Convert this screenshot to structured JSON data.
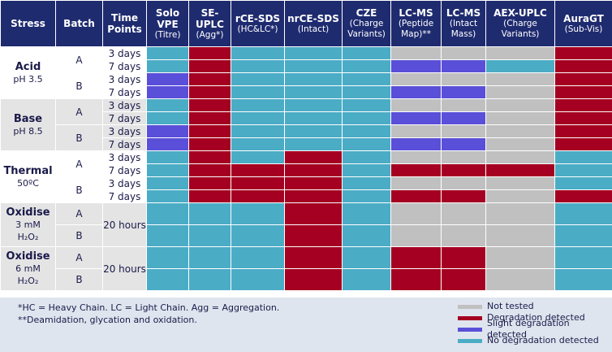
{
  "header": [
    {
      "main": [
        "Stress"
      ],
      "sub": []
    },
    {
      "main": [
        "Batch"
      ],
      "sub": []
    },
    {
      "main": [
        "Time",
        "Points"
      ],
      "sub": []
    },
    {
      "main": [
        "Solo",
        "VPE"
      ],
      "sub": [
        "(Titre)"
      ]
    },
    {
      "main": [
        "SE-",
        "UPLC"
      ],
      "sub": [
        "(Agg*)"
      ]
    },
    {
      "main": [
        "rCE-SDS"
      ],
      "sub": [
        "(HC&LC*)"
      ]
    },
    {
      "main": [
        "nrCE-SDS"
      ],
      "sub": [
        "(Intact)"
      ]
    },
    {
      "main": [
        "CZE"
      ],
      "sub": [
        "(Charge",
        "Variants)"
      ]
    },
    {
      "main": [
        "LC-MS"
      ],
      "sub": [
        "(Peptide",
        "Map)**"
      ]
    },
    {
      "main": [
        "LC-MS"
      ],
      "sub": [
        "(Intact",
        "Mass)"
      ]
    },
    {
      "main": [
        "AEX-UPLC"
      ],
      "sub": [
        "(Charge",
        "Variants)"
      ]
    },
    {
      "main": [
        "AuraGT"
      ],
      "sub": [
        "(Sub-Vis)"
      ]
    }
  ],
  "groups": [
    {
      "stress": "Acid",
      "condition": [
        "pH 3.5"
      ],
      "batches": [
        {
          "batch": "A",
          "rows": [
            {
              "time": "3 days",
              "cells": [
                3,
                1,
                3,
                3,
                3,
                0,
                0,
                0,
                1
              ]
            },
            {
              "time": "7 days",
              "cells": [
                3,
                1,
                3,
                3,
                3,
                2,
                2,
                3,
                1
              ]
            }
          ]
        },
        {
          "batch": "B",
          "rows": [
            {
              "time": "3 days",
              "cells": [
                2,
                1,
                3,
                3,
                3,
                0,
                0,
                0,
                1
              ]
            },
            {
              "time": "7 days",
              "cells": [
                2,
                1,
                3,
                3,
                3,
                2,
                2,
                0,
                1
              ]
            }
          ]
        }
      ]
    },
    {
      "stress": "Base",
      "condition": [
        "pH 8.5"
      ],
      "batches": [
        {
          "batch": "A",
          "rows": [
            {
              "time": "3 days",
              "cells": [
                3,
                1,
                3,
                3,
                3,
                0,
                0,
                0,
                1
              ]
            },
            {
              "time": "7 days",
              "cells": [
                3,
                1,
                3,
                3,
                3,
                2,
                2,
                0,
                1
              ]
            }
          ]
        },
        {
          "batch": "B",
          "rows": [
            {
              "time": "3 days",
              "cells": [
                2,
                1,
                3,
                3,
                3,
                0,
                0,
                0,
                1
              ]
            },
            {
              "time": "7 days",
              "cells": [
                2,
                1,
                3,
                3,
                3,
                2,
                2,
                0,
                1
              ]
            }
          ]
        }
      ]
    },
    {
      "stress": "Thermal",
      "condition": [
        "50ºC"
      ],
      "batches": [
        {
          "batch": "A",
          "rows": [
            {
              "time": "3 days",
              "cells": [
                3,
                1,
                3,
                1,
                3,
                0,
                0,
                0,
                3
              ]
            },
            {
              "time": "7 days",
              "cells": [
                3,
                1,
                1,
                1,
                3,
                1,
                1,
                1,
                3
              ]
            }
          ]
        },
        {
          "batch": "B",
          "rows": [
            {
              "time": "3 days",
              "cells": [
                3,
                1,
                1,
                1,
                3,
                0,
                0,
                0,
                3
              ]
            },
            {
              "time": "7 days",
              "cells": [
                3,
                1,
                1,
                1,
                3,
                1,
                1,
                0,
                1
              ]
            }
          ]
        }
      ]
    },
    {
      "stress": "Oxidise",
      "condition": [
        "3 mM",
        "H₂O₂"
      ],
      "time": "20 hours",
      "batches": [
        {
          "batch": "A",
          "rows": [
            {
              "cells": [
                3,
                3,
                3,
                1,
                3,
                0,
                0,
                0,
                3
              ]
            }
          ]
        },
        {
          "batch": "B",
          "rows": [
            {
              "cells": [
                3,
                3,
                3,
                1,
                3,
                0,
                0,
                0,
                3
              ]
            }
          ]
        }
      ]
    },
    {
      "stress": "Oxidise",
      "condition": [
        "6 mM",
        "H₂O₂"
      ],
      "time": "20 hours",
      "batches": [
        {
          "batch": "A",
          "rows": [
            {
              "cells": [
                3,
                3,
                3,
                1,
                3,
                1,
                1,
                0,
                3
              ]
            }
          ]
        },
        {
          "batch": "B",
          "rows": [
            {
              "cells": [
                3,
                3,
                3,
                1,
                3,
                1,
                1,
                0,
                3
              ]
            }
          ]
        }
      ]
    }
  ],
  "notes": [
    "*HC = Heavy Chain. LC = Light Chain. Agg = Aggregation.",
    "**Deamidation, glycation and oxidation."
  ],
  "legend": [
    {
      "label": "Not tested",
      "color": "#c0c0c0"
    },
    {
      "label": "Degradation detected",
      "color": "#a50021"
    },
    {
      "label": "Slight degradation detected",
      "color": "#5a4fd8"
    },
    {
      "label": "No degradation detected",
      "color": "#4bacc6"
    }
  ]
}
